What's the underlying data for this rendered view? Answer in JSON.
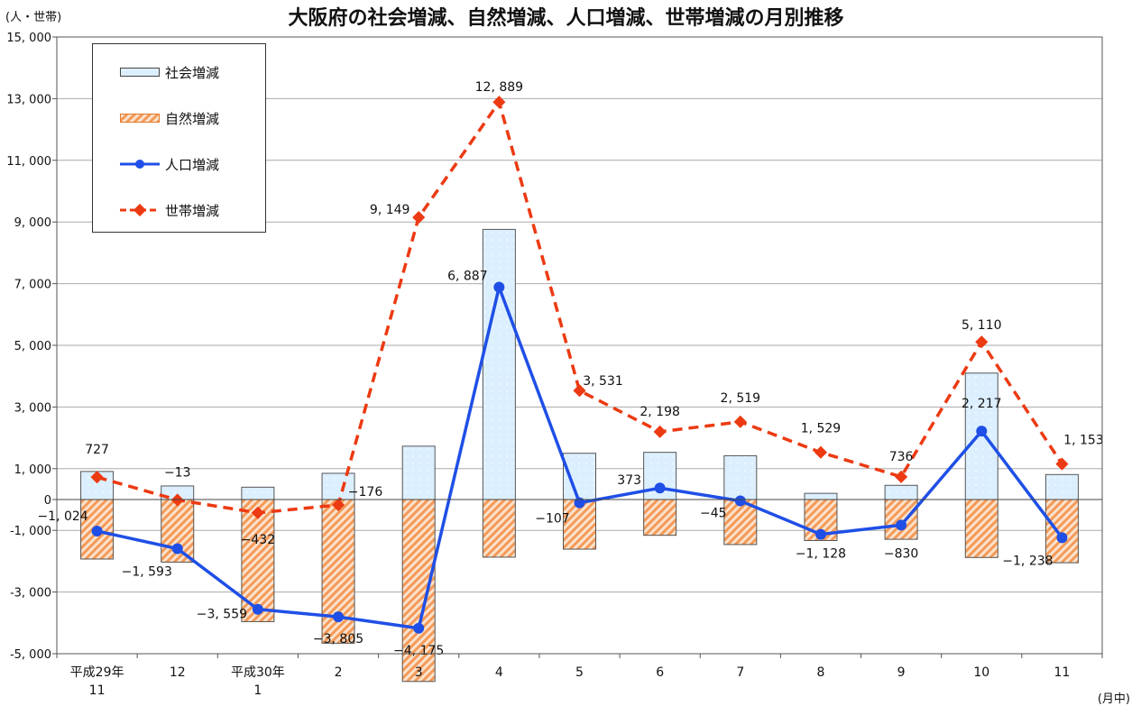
{
  "chart_data": {
    "type": "bar",
    "title": "大阪府の社会増減、自然増減、人口増減、世帯増減の月別推移",
    "y_unit": "(人・世帯)",
    "x_unit": "(月中)",
    "categories": [
      [
        "平成29年",
        "11"
      ],
      [
        "12"
      ],
      [
        "平成30年",
        "1"
      ],
      [
        "2"
      ],
      [
        "3"
      ],
      [
        "4"
      ],
      [
        "5"
      ],
      [
        "6"
      ],
      [
        "7"
      ],
      [
        "8"
      ],
      [
        "9"
      ],
      [
        "10"
      ],
      [
        "11"
      ]
    ],
    "ylim": [
      -5000,
      15000
    ],
    "yticks": [
      -5000,
      -3000,
      -1000,
      0,
      1000,
      3000,
      5000,
      7000,
      9000,
      11000,
      13000,
      15000
    ],
    "ytick_labels": [
      "-5, 000",
      "-3, 000",
      "-1, 000",
      "0",
      "1, 000",
      "3, 000",
      "5, 000",
      "7, 000",
      "9, 000",
      "11, 000",
      "13, 000",
      "15, 000"
    ],
    "legend_position": "top-left",
    "grid": true,
    "series": [
      {
        "name": "社会増減",
        "kind": "bar",
        "color": "#dcefff",
        "values": [
          910,
          440,
          400,
          850,
          1730,
          8760,
          1500,
          1530,
          1420,
          200,
          460,
          4100,
          810
        ]
      },
      {
        "name": "自然増減",
        "kind": "bar",
        "color": "#f4a66a",
        "values": [
          -1930,
          -2030,
          -3960,
          -4660,
          -5900,
          -1870,
          -1610,
          -1160,
          -1460,
          -1330,
          -1290,
          -1880,
          -2050
        ]
      },
      {
        "name": "人口増減",
        "kind": "line",
        "color": "#1f4fe6",
        "values": [
          -1024,
          -1593,
          -3559,
          -3805,
          -4175,
          6887,
          -107,
          373,
          -45,
          -1128,
          -830,
          2217,
          -1238
        ],
        "labels": [
          "−1, 024",
          "−1, 593",
          "−3, 559",
          "−3, 805",
          "−4, 175",
          "6, 887",
          "−107",
          "373",
          "−45",
          "−1, 128",
          "−830",
          "2, 217",
          "−1, 238"
        ]
      },
      {
        "name": "世帯増減",
        "kind": "line",
        "color": "#ec3a12",
        "values": [
          727,
          -13,
          -432,
          -176,
          9149,
          12889,
          3531,
          2198,
          2519,
          1529,
          736,
          5110,
          1153
        ],
        "labels": [
          "727",
          "−13",
          "−432",
          "−176",
          "9, 149",
          "12, 889",
          "3, 531",
          "2, 198",
          "2, 519",
          "1, 529",
          "736",
          "5, 110",
          "1, 153"
        ]
      }
    ]
  }
}
